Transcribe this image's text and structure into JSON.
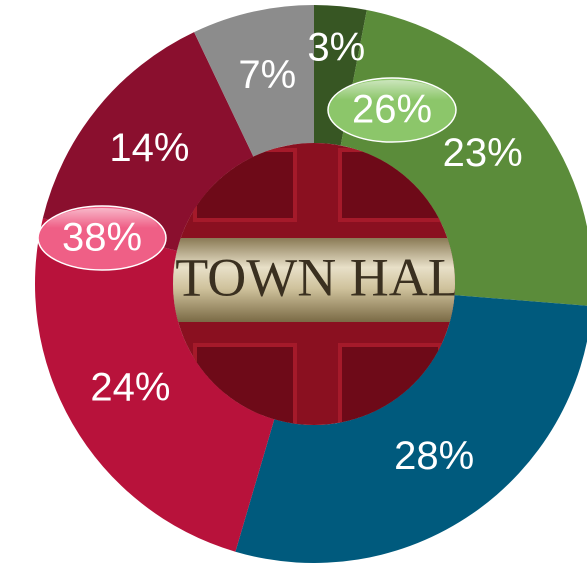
{
  "chart_data": {
    "type": "donut",
    "values": [
      3,
      23,
      28,
      24,
      14,
      7
    ],
    "value_labels": [
      "3%",
      "23%",
      "28%",
      "24%",
      "14%",
      "7%"
    ],
    "colors": [
      "#375623",
      "#5b8c3a",
      "#005a7d",
      "#b8123b",
      "#8a0f2e",
      "#8c8c8c"
    ],
    "annotations": [
      {
        "label": "26%",
        "color": "#8cc66a"
      },
      {
        "label": "38%",
        "color": "#ef5f86"
      }
    ],
    "center_text": "TOWN HAL"
  }
}
